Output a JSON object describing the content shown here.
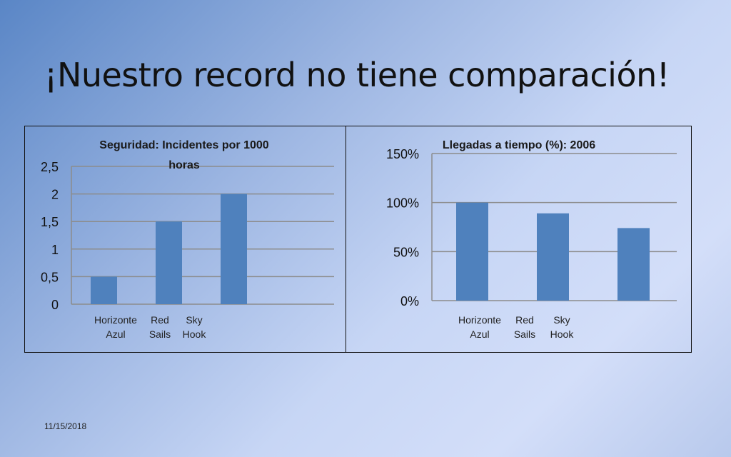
{
  "slide": {
    "title": "¡Nuestro record no tiene comparación!",
    "date": "11/15/2018"
  },
  "colors": {
    "bar": "#4f81bd",
    "grid": "#8c8c8c"
  },
  "chart_data": [
    {
      "type": "bar",
      "title_lines": [
        "Seguridad: Incidentes por 1000",
        "horas"
      ],
      "categories": [
        "Horizonte Azul",
        "Red Sails",
        "Sky Hook"
      ],
      "category_lines": [
        [
          "Horizonte",
          "Azul"
        ],
        [
          "Red",
          "Sails"
        ],
        [
          "Sky",
          "Hook"
        ]
      ],
      "values": [
        0.5,
        1.5,
        2
      ],
      "ylim": [
        0,
        2.5
      ],
      "yticks": [
        0,
        0.5,
        1,
        1.5,
        2,
        2.5
      ],
      "ytick_labels": [
        "0",
        "0,5",
        "1",
        "1,5",
        "2",
        "2,5"
      ],
      "grid": true
    },
    {
      "type": "bar",
      "title_lines": [
        "Llegadas a tiempo (%): 2006"
      ],
      "categories": [
        "Horizonte Azul",
        "Red Sails",
        "Sky Hook"
      ],
      "category_lines": [
        [
          "Horizonte",
          "Azul"
        ],
        [
          "Red",
          "Sails"
        ],
        [
          "Sky",
          "Hook"
        ]
      ],
      "values": [
        100,
        89,
        74
      ],
      "ylim": [
        0,
        150
      ],
      "yticks": [
        0,
        50,
        100,
        150
      ],
      "ytick_labels": [
        "0%",
        "50%",
        "100%",
        "150%"
      ],
      "grid": true
    }
  ]
}
